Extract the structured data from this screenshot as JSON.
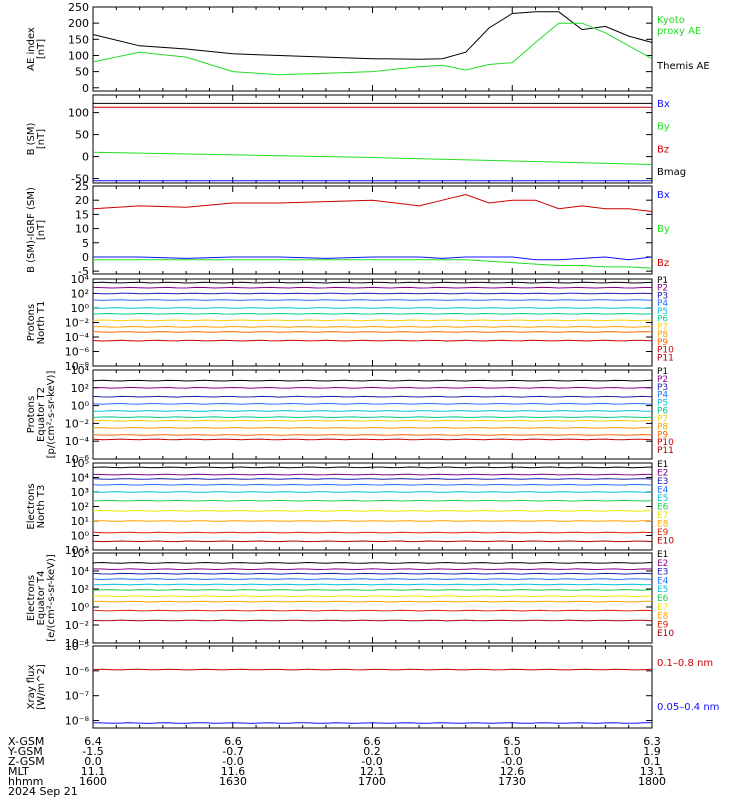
{
  "colors": {
    "black": "#000000",
    "green": "#22dd22",
    "red": "#cc0000",
    "blue": "#1010ff",
    "p": [
      "#000000",
      "#880088",
      "#2020b0",
      "#2070ff",
      "#00c0e0",
      "#00cc88",
      "#ffd000",
      "#ffa000",
      "#ff6600",
      "#cc0000",
      "#aa0000"
    ],
    "e": [
      "#000000",
      "#880088",
      "#2020b0",
      "#2070ff",
      "#00c0e0",
      "#20d050",
      "#e8e800",
      "#ffa000",
      "#dd2200",
      "#aa0000"
    ]
  },
  "chart_data": [
    {
      "type": "line",
      "ylabel": "AE index\n[nT]",
      "ylim": [
        -10,
        250
      ],
      "yticks": [
        0,
        50,
        100,
        150,
        200,
        250
      ],
      "yticklabels": [
        "0",
        "50",
        "100",
        "150",
        "200",
        "250"
      ],
      "x": [
        1600,
        1610,
        1620,
        1630,
        1640,
        1650,
        1700,
        1710,
        1715,
        1720,
        1725,
        1730,
        1735,
        1740,
        1745,
        1750,
        1755,
        1800
      ],
      "series": [
        {
          "name": "Themis AE",
          "color": "black",
          "values": [
            165,
            130,
            120,
            105,
            100,
            95,
            90,
            88,
            90,
            110,
            185,
            230,
            235,
            235,
            180,
            190,
            160,
            140
          ]
        },
        {
          "name": "Kyoto\nproxy AE",
          "color": "green",
          "values": [
            80,
            110,
            95,
            50,
            40,
            45,
            50,
            65,
            70,
            55,
            72,
            78,
            140,
            200,
            200,
            170,
            130,
            90
          ]
        }
      ]
    },
    {
      "type": "line",
      "ylabel": "B (SM)\n[nT]",
      "ylim": [
        -60,
        140
      ],
      "yticks": [
        -50,
        0,
        50,
        100
      ],
      "yticklabels": [
        "-50",
        "0",
        "50",
        "100"
      ],
      "x": [
        1600,
        1700,
        1800
      ],
      "series": [
        {
          "name": "Bx",
          "color": "blue",
          "values": [
            -55,
            -55,
            -55
          ]
        },
        {
          "name": "By",
          "color": "green",
          "values": [
            10,
            -2,
            -18
          ]
        },
        {
          "name": "Bz",
          "color": "red",
          "values": [
            112,
            112,
            112
          ]
        },
        {
          "name": "Bmag",
          "color": "black",
          "values": [
            121,
            121,
            121
          ]
        }
      ]
    },
    {
      "type": "line",
      "ylabel": "B (SM)-IGRF (SM)\n[nT]",
      "ylim": [
        -6,
        25
      ],
      "yticks": [
        -5,
        0,
        5,
        10,
        15,
        20,
        25
      ],
      "yticklabels": [
        "-5",
        "0",
        "5",
        "10",
        "15",
        "20",
        "25"
      ],
      "x": [
        1600,
        1610,
        1620,
        1630,
        1640,
        1650,
        1700,
        1705,
        1710,
        1715,
        1720,
        1725,
        1730,
        1735,
        1740,
        1745,
        1750,
        1755,
        1800
      ],
      "series": [
        {
          "name": "Bx",
          "color": "blue",
          "values": [
            0,
            0,
            -0.5,
            0,
            0,
            -0.5,
            0,
            0,
            0,
            -0.5,
            0,
            0,
            0,
            -1,
            -1,
            -0.5,
            0,
            -1,
            0
          ]
        },
        {
          "name": "By",
          "color": "green",
          "values": [
            -1,
            -1,
            -1,
            -1,
            -1,
            -1,
            -1,
            -1,
            -1,
            -1,
            -1,
            -1.5,
            -2,
            -2.5,
            -3,
            -3,
            -3.5,
            -3.5,
            -4
          ]
        },
        {
          "name": "Bz",
          "color": "red",
          "values": [
            17,
            18,
            17.5,
            19,
            19,
            19.5,
            20,
            19,
            18,
            20,
            22,
            19,
            20,
            20,
            17,
            18,
            17,
            17,
            16
          ]
        }
      ]
    },
    {
      "type": "line",
      "log": true,
      "ylabel": "Protons\nNorth T1",
      "ylim": [
        -8,
        4
      ],
      "yticks": [
        -8,
        -6,
        -4,
        -2,
        0,
        2,
        4
      ],
      "yticklabels": [
        "10⁻⁸",
        "10⁻⁶",
        "10⁻⁴",
        "10⁻²",
        "10⁰",
        "10²",
        "10⁴"
      ],
      "x": [
        1600,
        1800
      ],
      "series": [
        {
          "name": "P1",
          "color": "p0",
          "log_values": [
            3.5,
            3.5
          ]
        },
        {
          "name": "P2",
          "color": "p1",
          "log_values": [
            2.8,
            2.8
          ]
        },
        {
          "name": "P3",
          "color": "p2",
          "log_values": [
            2.0,
            2.0
          ]
        },
        {
          "name": "P4",
          "color": "p3",
          "log_values": [
            1.1,
            1.1
          ]
        },
        {
          "name": "P5",
          "color": "p4",
          "log_values": [
            0.0,
            0.0
          ]
        },
        {
          "name": "P6",
          "color": "p5",
          "log_values": [
            -0.8,
            -0.8
          ]
        },
        {
          "name": "P7",
          "color": "p6",
          "log_values": [
            -1.7,
            -1.7
          ]
        },
        {
          "name": "P8",
          "color": "p7",
          "log_values": [
            -2.6,
            -2.6
          ]
        },
        {
          "name": "P9",
          "color": "p8",
          "log_values": [
            -3.3,
            -3.3
          ]
        },
        {
          "name": "P10",
          "color": "p9",
          "log_values": [
            -4.5,
            -4.5
          ]
        },
        {
          "name": "P11",
          "color": "p10",
          "log_values": []
        }
      ]
    },
    {
      "type": "line",
      "log": true,
      "ylabel": "Protons\nEquator T2\n[p/(cm²-s-sr-keV)]",
      "ylim": [
        -6,
        4
      ],
      "yticks": [
        -6,
        -4,
        -2,
        0,
        2,
        4
      ],
      "yticklabels": [
        "10⁻⁶",
        "10⁻⁴",
        "10⁻²",
        "10⁰",
        "10²",
        "10⁴"
      ],
      "x": [
        1600,
        1800
      ],
      "series": [
        {
          "name": "P1",
          "color": "p0",
          "log_values": [
            2.8,
            2.8
          ]
        },
        {
          "name": "P2",
          "color": "p1",
          "log_values": [
            2.0,
            2.0
          ]
        },
        {
          "name": "P3",
          "color": "p2",
          "log_values": [
            1.0,
            1.0
          ]
        },
        {
          "name": "P4",
          "color": "p3",
          "log_values": [
            0.2,
            0.2
          ]
        },
        {
          "name": "P5",
          "color": "p4",
          "log_values": [
            -0.6,
            -0.6
          ]
        },
        {
          "name": "P6",
          "color": "p5",
          "log_values": [
            -1.3,
            -1.3
          ]
        },
        {
          "name": "P7",
          "color": "p6",
          "log_values": [
            -1.7,
            -1.7
          ]
        },
        {
          "name": "P8",
          "color": "p7",
          "log_values": [
            -2.5,
            -2.5
          ]
        },
        {
          "name": "P9",
          "color": "p8",
          "log_values": [
            -3.3,
            -3.3
          ]
        },
        {
          "name": "P10",
          "color": "p9",
          "log_values": [
            -3.8,
            -3.8
          ]
        },
        {
          "name": "P11",
          "color": "p10",
          "log_values": []
        }
      ]
    },
    {
      "type": "line",
      "log": true,
      "ylabel": "Electrons\nNorth T3",
      "ylim": [
        -1,
        5
      ],
      "yticks": [
        -1,
        0,
        1,
        2,
        3,
        4,
        5
      ],
      "yticklabels": [
        "10⁻¹",
        "10⁰",
        "10¹",
        "10²",
        "10³",
        "10⁴",
        "10⁵"
      ],
      "x": [
        1600,
        1800
      ],
      "series": [
        {
          "name": "E1",
          "color": "e0",
          "log_values": [
            4.7,
            4.7
          ]
        },
        {
          "name": "E2",
          "color": "e1",
          "log_values": [
            4.2,
            4.2
          ]
        },
        {
          "name": "E3",
          "color": "e2",
          "log_values": [
            3.9,
            3.9
          ]
        },
        {
          "name": "E4",
          "color": "e3",
          "log_values": [
            3.5,
            3.5
          ]
        },
        {
          "name": "E5",
          "color": "e4",
          "log_values": [
            3.0,
            3.0
          ]
        },
        {
          "name": "E6",
          "color": "e5",
          "log_values": [
            2.4,
            2.4
          ]
        },
        {
          "name": "E7",
          "color": "e6",
          "log_values": [
            1.7,
            1.7
          ]
        },
        {
          "name": "E8",
          "color": "e7",
          "log_values": [
            1.0,
            1.0
          ]
        },
        {
          "name": "E9",
          "color": "e8",
          "log_values": [
            0.2,
            0.2
          ]
        },
        {
          "name": "E10",
          "color": "e9",
          "log_values": [
            -0.4,
            -0.4
          ]
        }
      ]
    },
    {
      "type": "line",
      "log": true,
      "ylabel": "Electrons\nEquator T4\n[e/(cm²-s-sr-keV)]",
      "ylim": [
        -4,
        6
      ],
      "yticks": [
        -4,
        -2,
        0,
        2,
        4,
        6
      ],
      "yticklabels": [
        "10⁻⁴",
        "10⁻²",
        "10⁰",
        "10²",
        "10⁴",
        "10⁶"
      ],
      "x": [
        1600,
        1800
      ],
      "series": [
        {
          "name": "E1",
          "color": "e0",
          "log_values": [
            4.9,
            4.9
          ]
        },
        {
          "name": "E2",
          "color": "e1",
          "log_values": [
            4.2,
            4.2
          ]
        },
        {
          "name": "E3",
          "color": "e2",
          "log_values": [
            3.7,
            3.7
          ]
        },
        {
          "name": "E4",
          "color": "e3",
          "log_values": [
            3.1,
            3.1
          ]
        },
        {
          "name": "E5",
          "color": "e4",
          "log_values": [
            2.5,
            2.5
          ]
        },
        {
          "name": "E6",
          "color": "e5",
          "log_values": [
            1.9,
            1.9
          ]
        },
        {
          "name": "E7",
          "color": "e6",
          "log_values": [
            1.2,
            1.2
          ]
        },
        {
          "name": "E8",
          "color": "e7",
          "log_values": [
            0.6,
            0.6
          ]
        },
        {
          "name": "E9",
          "color": "e8",
          "log_values": [
            -0.4,
            -0.4
          ]
        },
        {
          "name": "E10",
          "color": "e9",
          "log_values": [
            -1.5,
            -1.5
          ]
        }
      ]
    },
    {
      "type": "line",
      "log": true,
      "ylabel": "Xray flux\n[W/m^2]",
      "ylim": [
        -8.3,
        -5
      ],
      "yticks": [
        -8,
        -7,
        -6,
        -5
      ],
      "yticklabels": [
        "10⁻⁸",
        "10⁻⁷",
        "10⁻⁶",
        "10⁻⁵"
      ],
      "x": [
        1600,
        1800
      ],
      "series": [
        {
          "name": "0.1–0.8 nm",
          "color": "red",
          "log_values": [
            -5.95,
            -5.95
          ]
        },
        {
          "name": "0.05–0.4 nm",
          "color": "blue",
          "log_values": [
            -8.1,
            -8.1
          ]
        }
      ]
    }
  ],
  "footer": {
    "rows": [
      {
        "label": "X-GSM",
        "values": [
          "6.4",
          "6.6",
          "6.6",
          "6.5",
          "6.3"
        ]
      },
      {
        "label": "Y-GSM",
        "values": [
          "-1.5",
          "-0.7",
          "0.2",
          "1.0",
          "1.9"
        ]
      },
      {
        "label": "Z-GSM",
        "values": [
          "0.0",
          "-0.0",
          "-0.0",
          "-0.0",
          "0.1"
        ]
      },
      {
        "label": "MLT",
        "values": [
          "11.1",
          "11.6",
          "12.1",
          "12.6",
          "13.1"
        ]
      },
      {
        "label": "hhmm",
        "values": [
          "1600",
          "1630",
          "1700",
          "1730",
          "1800"
        ]
      }
    ],
    "date": "2024 Sep 21"
  }
}
